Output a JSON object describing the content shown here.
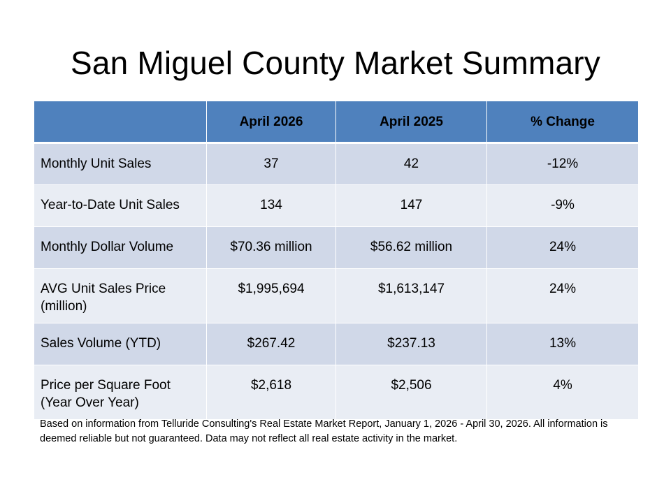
{
  "title": "San Miguel County Market Summary",
  "table": {
    "headers": [
      "",
      "April 2026",
      "April 2025",
      "% Change"
    ],
    "rows": [
      {
        "label": "Monthly Unit Sales",
        "april_2026": "37",
        "april_2025": "42",
        "change": "-12%"
      },
      {
        "label": "Year-to-Date Unit Sales",
        "april_2026": "134",
        "april_2025": "147",
        "change": "-9%"
      },
      {
        "label": "Monthly Dollar Volume",
        "april_2026": "$70.36 million",
        "april_2025": "$56.62 million",
        "change": "24%"
      },
      {
        "label": "AVG Unit Sales Price (million)",
        "april_2026": "$1,995,694",
        "april_2025": "$1,613,147",
        "change": "24%"
      },
      {
        "label": "Sales Volume (YTD)",
        "april_2026": "$267.42",
        "april_2025": "$237.13",
        "change": "13%"
      },
      {
        "label": "Price per Square Foot (Year Over Year)",
        "april_2026": "$2,618",
        "april_2025": "$2,506",
        "change": "4%"
      }
    ],
    "header_color": "#4f81bd",
    "row_color_odd": "#d0d8e8",
    "row_color_even": "#e9edf4"
  },
  "footnote": "Based on information from Telluride Consulting's Real Estate Market Report, January 1, 2026 - April 30, 2026. All information is deemed reliable but not guaranteed. Data may not reflect all real estate activity in the market."
}
